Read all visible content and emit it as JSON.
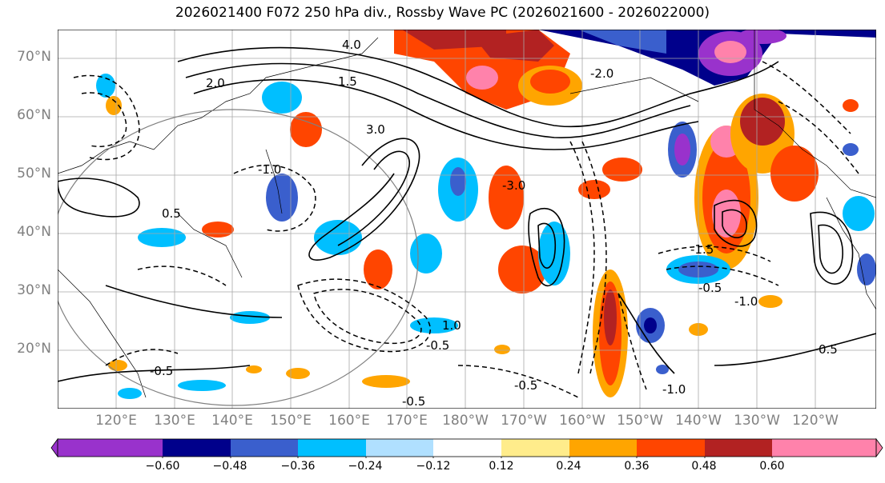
{
  "title": "2026021400 F072 250 hPa div., Rossby Wave PC (2026021600 - 2026022000)",
  "map": {
    "projection": "cylindrical",
    "lat_labels": [
      "70°N",
      "60°N",
      "50°N",
      "40°N",
      "30°N",
      "20°N"
    ],
    "lon_labels": [
      "120°E",
      "130°E",
      "140°E",
      "150°E",
      "160°E",
      "170°E",
      "180°W",
      "170°W",
      "160°W",
      "150°W",
      "140°W",
      "130°W",
      "120°W"
    ],
    "contour_labels": [
      "4.0",
      "2.0",
      "1.5",
      "0.5",
      "-1.0",
      "-0.5",
      "1.0",
      "3.0",
      "-1.5",
      "-2.0",
      "-3.0"
    ],
    "gridlines": true,
    "coastlines": true
  },
  "colorbar": {
    "extend": "both",
    "ticks": [
      "−0.60",
      "−0.48",
      "−0.36",
      "−0.24",
      "−0.12",
      "0.12",
      "0.24",
      "0.36",
      "0.48",
      "0.60"
    ],
    "colors": [
      "#9932cc",
      "#00008b",
      "#3a5fcd",
      "#00bfff",
      "#b0e0ff",
      "#ffffff",
      "#ffec8b",
      "#ffa500",
      "#ff4500",
      "#b22222",
      "#ff82ab",
      "#ff82ab"
    ],
    "bounds": [
      -0.6,
      -0.48,
      -0.36,
      -0.24,
      -0.12,
      0.12,
      0.24,
      0.36,
      0.48,
      0.6
    ]
  }
}
